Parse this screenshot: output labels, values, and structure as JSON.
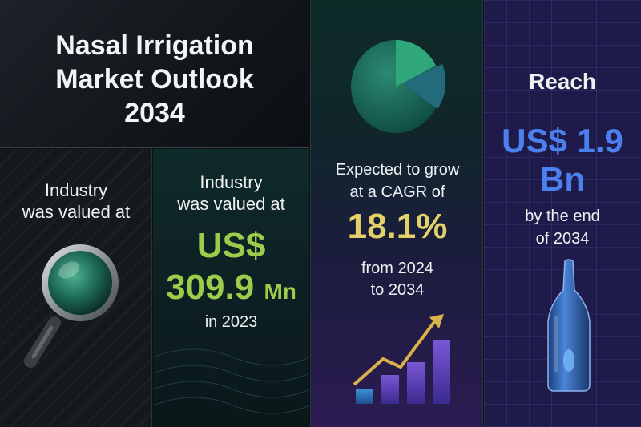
{
  "title": {
    "line1": "Nasal Irrigation",
    "line2": "Market Outlook",
    "line3": "2034"
  },
  "industry_panel_1": {
    "label_line1": "Industry",
    "label_line2": "was valued at",
    "icon": "magnifier-icon"
  },
  "industry_panel_2": {
    "label_line1": "Industry",
    "label_line2": "was valued at",
    "currency": "US$",
    "value": "309.9",
    "unit": "Mn",
    "year_text": "in 2023",
    "color": "#9ccd4a"
  },
  "cagr_panel": {
    "label_line1": "Expected to grow",
    "label_line2": "at a CAGR of",
    "rate": "18.1%",
    "range_line1": "from 2024",
    "range_line2": "to 2034",
    "pie_icon": "pie-chart-icon",
    "growth_icon": "growth-bar-chart-icon",
    "color": "#e4d06a"
  },
  "reach_panel": {
    "heading": "Reach",
    "value_line1": "US$ 1.9",
    "value_line2": "Bn",
    "end_line1": "by the end",
    "end_line2": "of 2034",
    "icon": "nasal-irrigation-bottle-icon",
    "color": "#4c80ee"
  }
}
